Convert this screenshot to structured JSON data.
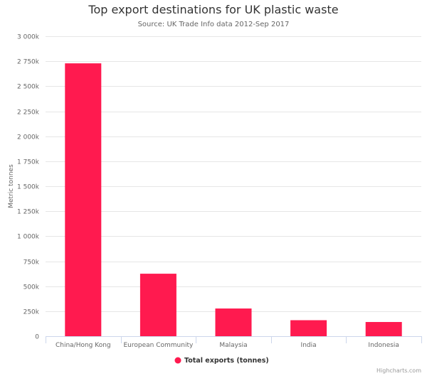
{
  "chart_data": {
    "type": "bar",
    "title": "Top export destinations for UK plastic waste",
    "subtitle": "Source: UK Trade Info data 2012-Sep 2017",
    "xlabel": "",
    "ylabel": "Metric tonnes",
    "categories": [
      "China/Hong Kong",
      "European Community",
      "Malaysia",
      "India",
      "Indonesia"
    ],
    "series": [
      {
        "name": "Total exports (tonnes)",
        "color": "#ff1a4f",
        "values": [
          2729000,
          625000,
          277000,
          160000,
          142000
        ]
      }
    ],
    "ylim": [
      0,
      3000000
    ],
    "yticks": [
      0,
      250000,
      500000,
      750000,
      1000000,
      1250000,
      1500000,
      1750000,
      2000000,
      2250000,
      2500000,
      2750000,
      3000000
    ],
    "ytick_labels": [
      "0",
      "250k",
      "500k",
      "750k",
      "1 000k",
      "1 250k",
      "1 500k",
      "1 750k",
      "2 000k",
      "2 250k",
      "2 500k",
      "2 750k",
      "3 000k"
    ],
    "grid": true,
    "legend_position": "bottom-center"
  },
  "credits": "Highcharts.com"
}
